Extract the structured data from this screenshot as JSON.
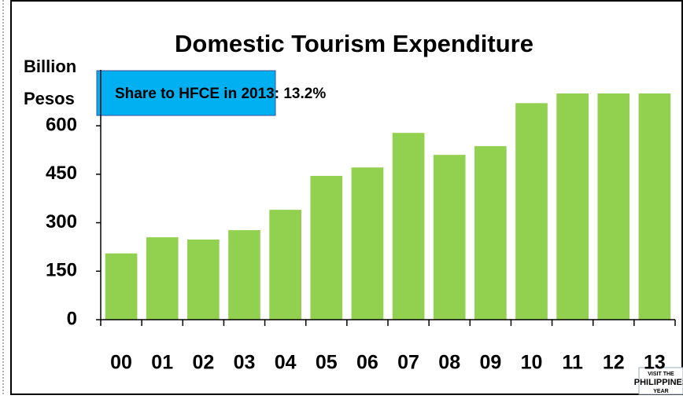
{
  "chart_data": {
    "type": "bar",
    "title": "Domestic Tourism Expenditure",
    "ylabel": [
      "Billion",
      "Pesos"
    ],
    "annotation": "Share to HFCE in 2013:  13.2%",
    "categories": [
      "00",
      "01",
      "02",
      "03",
      "04",
      "05",
      "06",
      "07",
      "08",
      "09",
      "10",
      "11",
      "12",
      "13"
    ],
    "values": [
      205,
      255,
      248,
      277,
      340,
      445,
      471,
      578,
      510,
      537,
      670,
      700,
      700,
      700
    ],
    "color": "#92d050",
    "ylim": [
      0,
      700
    ],
    "yticks": [
      0,
      150,
      300,
      450,
      600
    ],
    "grid": false,
    "logo": [
      "VISIT THE",
      "PHILIPPINES",
      "YEAR"
    ]
  }
}
